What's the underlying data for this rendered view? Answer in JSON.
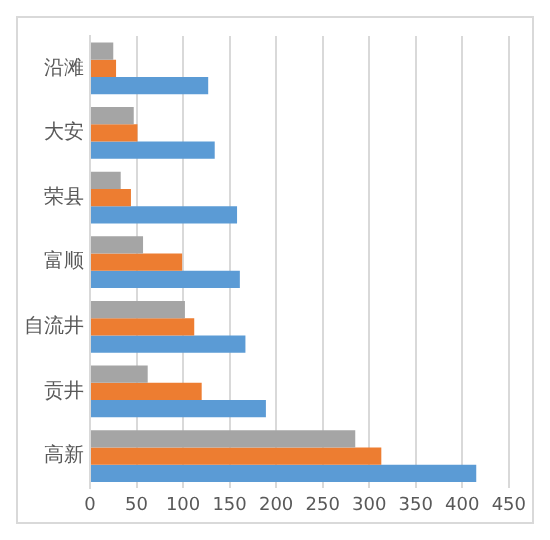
{
  "chart_data": {
    "type": "bar",
    "orientation": "horizontal",
    "categories": [
      "沿滩",
      "大安",
      "荣县",
      "富顺",
      "自流井",
      "贡井",
      "高新"
    ],
    "series": [
      {
        "color": "#a5a5a5",
        "values": [
          25,
          47,
          33,
          57,
          102,
          62,
          285
        ]
      },
      {
        "color": "#ed7d31",
        "values": [
          28,
          51,
          44,
          99,
          112,
          120,
          313
        ]
      },
      {
        "color": "#5b9bd5",
        "values": [
          127,
          134,
          158,
          161,
          167,
          189,
          415
        ]
      }
    ],
    "xlim": [
      0,
      450
    ],
    "xticks": [
      0,
      50,
      100,
      150,
      200,
      250,
      300,
      350,
      400,
      450
    ],
    "grid": "x",
    "legend": false
  }
}
